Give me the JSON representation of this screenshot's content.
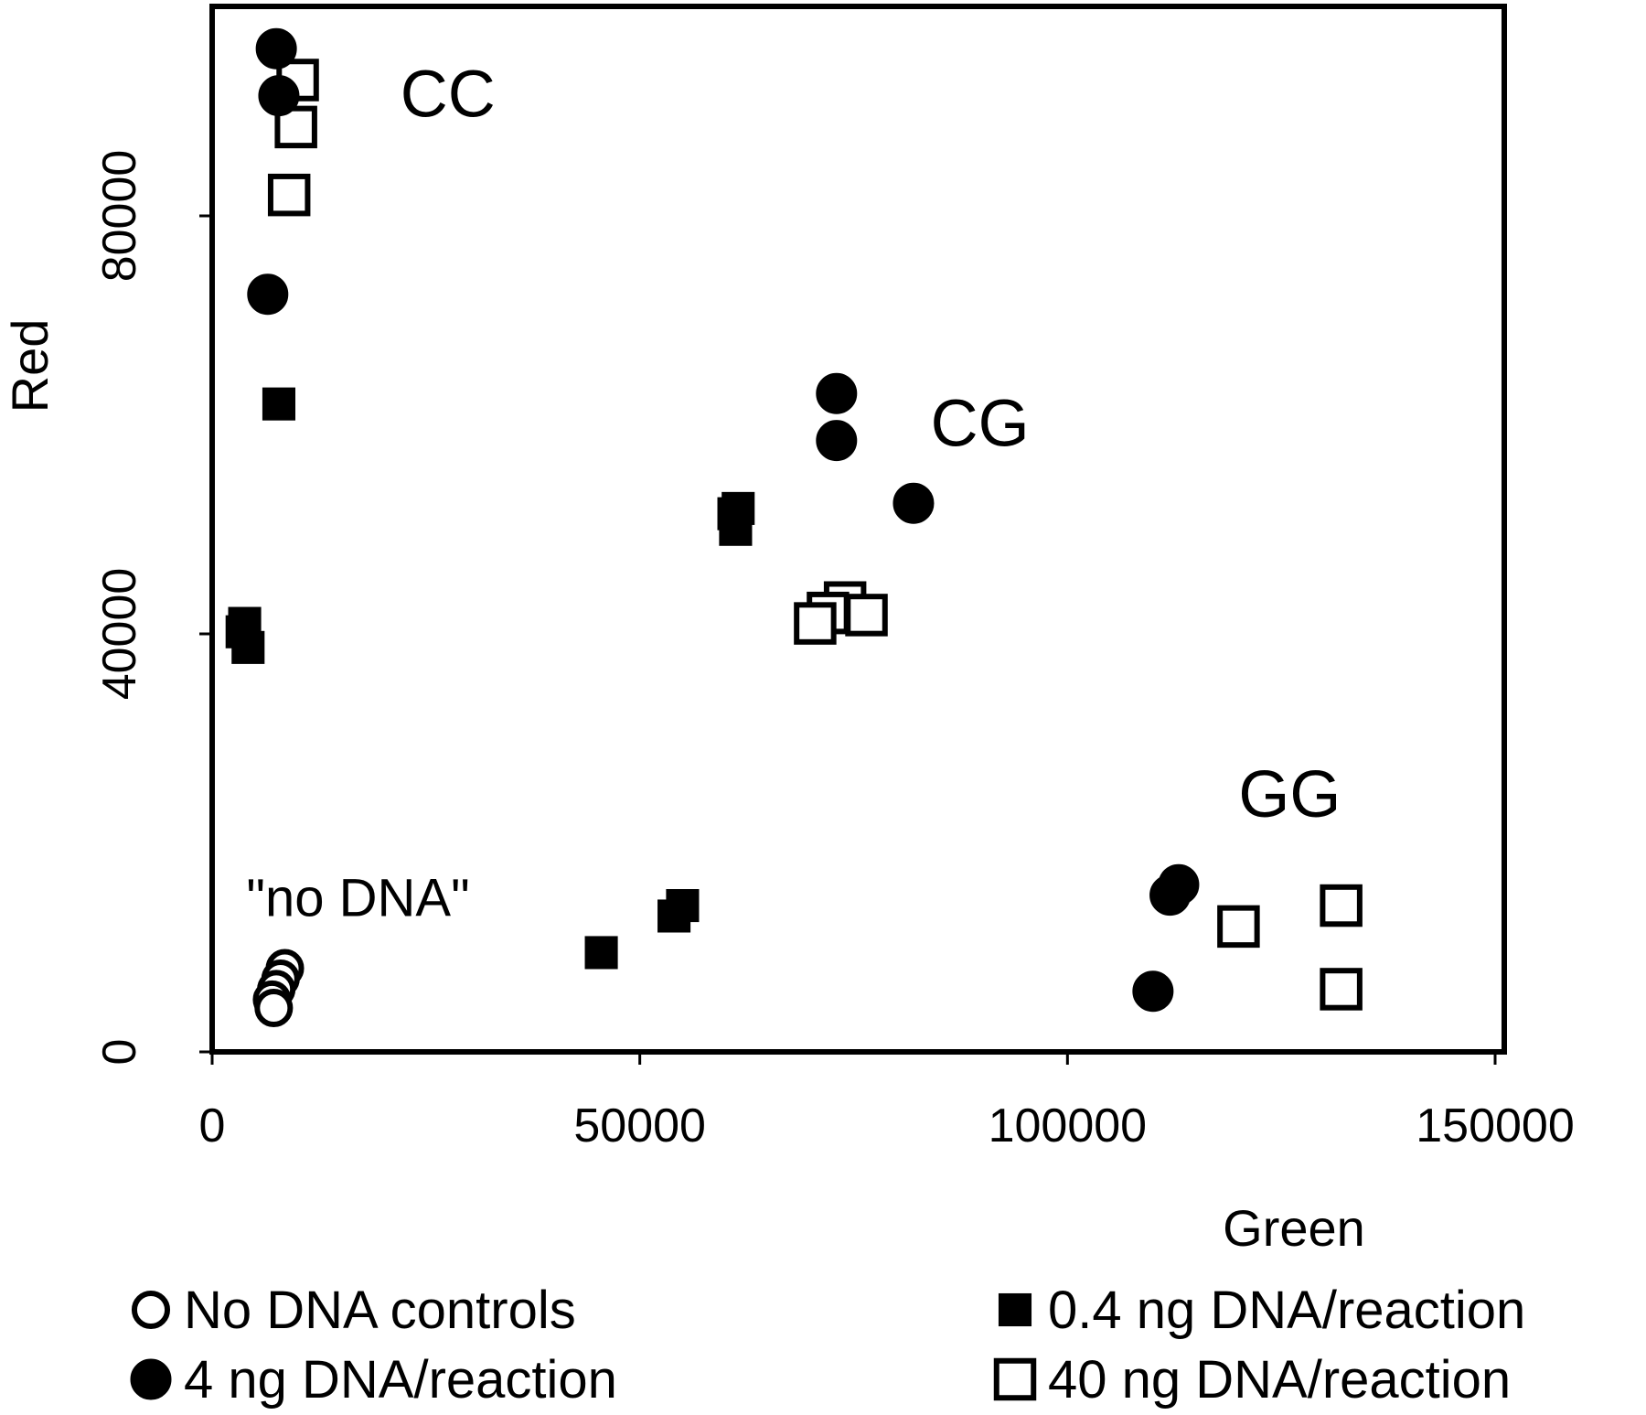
{
  "chart_data": {
    "type": "scatter",
    "title": "",
    "xlabel": "Green",
    "ylabel": "Red",
    "xlim": [
      0,
      150000
    ],
    "ylim": [
      0,
      100000
    ],
    "xticks": [
      "0",
      "50000",
      "100000",
      "150000"
    ],
    "yticks": [
      "0",
      "40000",
      "80000"
    ],
    "grid": false,
    "legend_position": "bottom",
    "annotations": [
      {
        "text": "CC",
        "x": 22000,
        "y": 89500
      },
      {
        "text": "CG",
        "x": 84000,
        "y": 58000
      },
      {
        "text": "GG",
        "x": 120000,
        "y": 22500
      },
      {
        "text": "\"no DNA\"",
        "x": 4000,
        "y": 13000
      }
    ],
    "series": [
      {
        "name": "No DNA controls",
        "marker": "open-circle",
        "points": [
          {
            "x": 8500,
            "y": 8000
          },
          {
            "x": 8000,
            "y": 7000
          },
          {
            "x": 7500,
            "y": 6000
          },
          {
            "x": 7000,
            "y": 5000
          },
          {
            "x": 7200,
            "y": 4200
          }
        ]
      },
      {
        "name": "0.4 ng DNA/reaction",
        "marker": "filled-square",
        "points": [
          {
            "x": 7800,
            "y": 62000
          },
          {
            "x": 3800,
            "y": 41000
          },
          {
            "x": 3500,
            "y": 40200
          },
          {
            "x": 4200,
            "y": 38700
          },
          {
            "x": 61500,
            "y": 52000
          },
          {
            "x": 61000,
            "y": 51500
          },
          {
            "x": 61200,
            "y": 50000
          },
          {
            "x": 55000,
            "y": 14000
          },
          {
            "x": 54000,
            "y": 13000
          },
          {
            "x": 45500,
            "y": 9500
          }
        ]
      },
      {
        "name": "4 ng DNA/reaction",
        "marker": "filled-circle",
        "points": [
          {
            "x": 7500,
            "y": 96000
          },
          {
            "x": 7800,
            "y": 91500
          },
          {
            "x": 6500,
            "y": 72500
          },
          {
            "x": 73000,
            "y": 63000
          },
          {
            "x": 73000,
            "y": 58500
          },
          {
            "x": 82000,
            "y": 52500
          },
          {
            "x": 113000,
            "y": 16000
          },
          {
            "x": 112000,
            "y": 15000
          },
          {
            "x": 110000,
            "y": 5800
          }
        ]
      },
      {
        "name": "40 ng DNA/reaction",
        "marker": "open-square",
        "points": [
          {
            "x": 10000,
            "y": 93000
          },
          {
            "x": 9800,
            "y": 88500
          },
          {
            "x": 9000,
            "y": 82000
          },
          {
            "x": 74000,
            "y": 43000
          },
          {
            "x": 72000,
            "y": 42000
          },
          {
            "x": 76500,
            "y": 41800
          },
          {
            "x": 70500,
            "y": 41000
          },
          {
            "x": 120000,
            "y": 12000
          },
          {
            "x": 132000,
            "y": 14000
          },
          {
            "x": 132000,
            "y": 6000
          }
        ]
      }
    ]
  }
}
